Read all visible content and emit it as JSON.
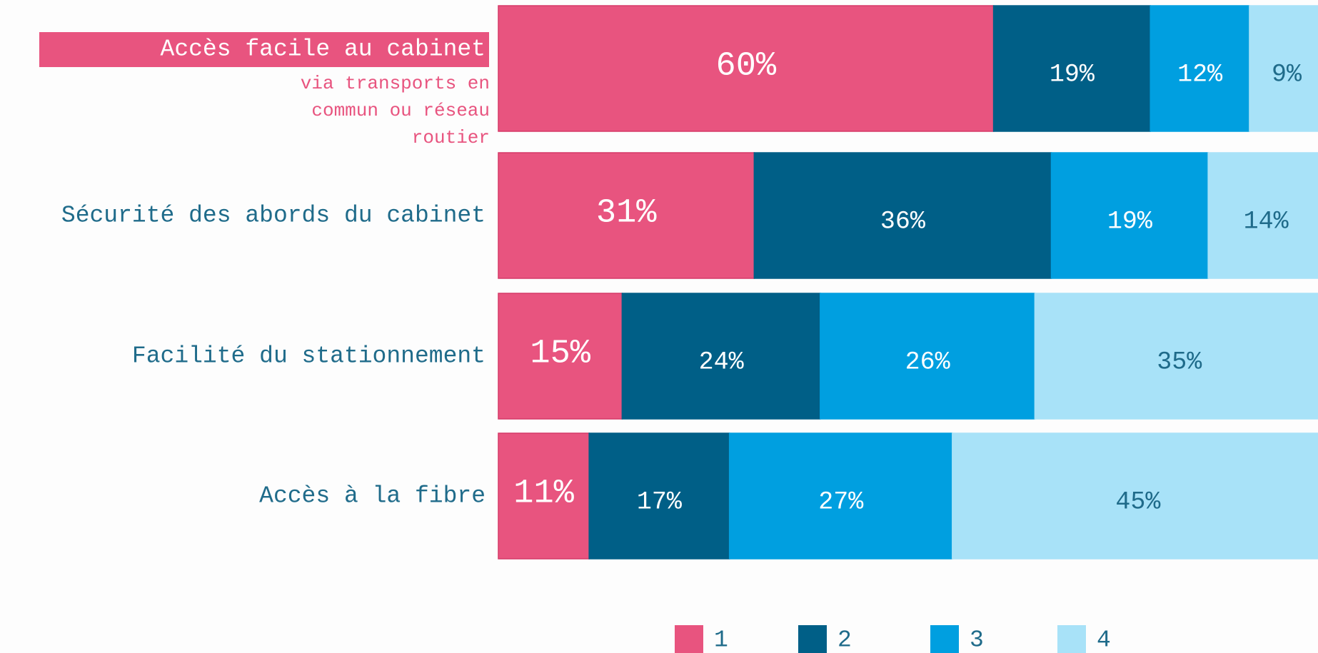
{
  "chart_data": {
    "type": "stacked-bar-horizontal",
    "categories": [
      "Accès facile au cabinet",
      "Sécurité des abords du cabinet",
      "Facilité du stationnement",
      "Accès à la fibre"
    ],
    "annotation": "via transports en commun ou réseau routier",
    "xlim": [
      0,
      100
    ],
    "legend": "bottom",
    "series": [
      {
        "name": "1",
        "color": "#e8547f",
        "values": [
          60,
          31,
          15,
          11
        ],
        "value_labels": [
          "60%",
          "31%",
          "15%",
          "11%"
        ]
      },
      {
        "name": "2",
        "color": "#005f87",
        "values": [
          19,
          36,
          24,
          17
        ],
        "value_labels": [
          "19%",
          "36%",
          "24%",
          "17%"
        ]
      },
      {
        "name": "3",
        "color": "#009fe0",
        "values": [
          12,
          19,
          26,
          27
        ],
        "value_labels": [
          "12%",
          "19%",
          "26%",
          "27%"
        ]
      },
      {
        "name": "4",
        "color": "#a8e2f8",
        "values": [
          9,
          14,
          35,
          45
        ],
        "value_labels": [
          "9%",
          "14%",
          "35%",
          "45%"
        ]
      }
    ]
  }
}
